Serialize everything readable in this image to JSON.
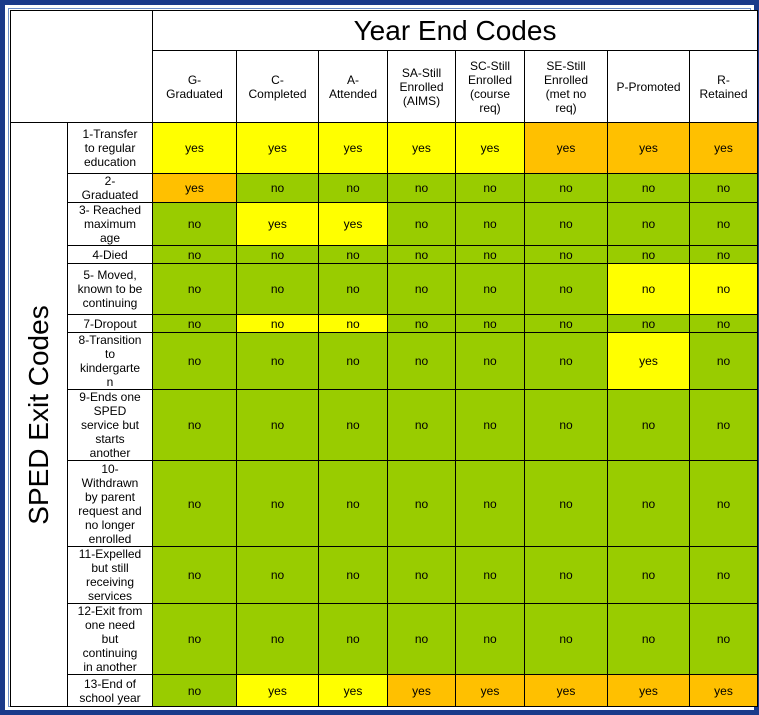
{
  "title": "Year End Codes",
  "side_label": "SPED Exit Codes",
  "columns": [
    "G-\nGraduated",
    "C-\nCompleted",
    "A-\nAttended",
    "SA-Still\nEnrolled\n(AIMS)",
    "SC-Still\nEnrolled\n(course\nreq)",
    "SE-Still\nEnrolled\n(met no\nreq)",
    "P-Promoted",
    "R-\nRetained"
  ],
  "colors": {
    "yellow": "#ffff00",
    "orange": "#ffc000",
    "green": "#99cc00"
  },
  "rows": [
    {
      "label": "1-Transfer\nto regular\neducation",
      "cells": [
        {
          "v": "yes",
          "c": "yellow"
        },
        {
          "v": "yes",
          "c": "yellow"
        },
        {
          "v": "yes",
          "c": "yellow"
        },
        {
          "v": "yes",
          "c": "yellow"
        },
        {
          "v": "yes",
          "c": "yellow"
        },
        {
          "v": "yes",
          "c": "orange"
        },
        {
          "v": "yes",
          "c": "orange"
        },
        {
          "v": "yes",
          "c": "orange"
        }
      ]
    },
    {
      "label": "2-\nGraduated",
      "cells": [
        {
          "v": "yes",
          "c": "orange"
        },
        {
          "v": "no",
          "c": "green"
        },
        {
          "v": "no",
          "c": "green"
        },
        {
          "v": "no",
          "c": "green"
        },
        {
          "v": "no",
          "c": "green"
        },
        {
          "v": "no",
          "c": "green"
        },
        {
          "v": "no",
          "c": "green"
        },
        {
          "v": "no",
          "c": "green"
        }
      ]
    },
    {
      "label": "3- Reached\nmaximum\nage",
      "cells": [
        {
          "v": "no",
          "c": "green"
        },
        {
          "v": "yes",
          "c": "yellow"
        },
        {
          "v": "yes",
          "c": "yellow"
        },
        {
          "v": "no",
          "c": "green"
        },
        {
          "v": "no",
          "c": "green"
        },
        {
          "v": "no",
          "c": "green"
        },
        {
          "v": "no",
          "c": "green"
        },
        {
          "v": "no",
          "c": "green"
        }
      ]
    },
    {
      "label": "4-Died",
      "cells": [
        {
          "v": "no",
          "c": "green"
        },
        {
          "v": "no",
          "c": "green"
        },
        {
          "v": "no",
          "c": "green"
        },
        {
          "v": "no",
          "c": "green"
        },
        {
          "v": "no",
          "c": "green"
        },
        {
          "v": "no",
          "c": "green"
        },
        {
          "v": "no",
          "c": "green"
        },
        {
          "v": "no",
          "c": "green"
        }
      ]
    },
    {
      "label": "5- Moved,\nknown to be\ncontinuing",
      "cells": [
        {
          "v": "no",
          "c": "green"
        },
        {
          "v": "no",
          "c": "green"
        },
        {
          "v": "no",
          "c": "green"
        },
        {
          "v": "no",
          "c": "green"
        },
        {
          "v": "no",
          "c": "green"
        },
        {
          "v": "no",
          "c": "green"
        },
        {
          "v": "no",
          "c": "yellow"
        },
        {
          "v": "no",
          "c": "yellow"
        }
      ]
    },
    {
      "label": "7-Dropout",
      "cells": [
        {
          "v": "no",
          "c": "green"
        },
        {
          "v": "no",
          "c": "yellow"
        },
        {
          "v": "no",
          "c": "yellow"
        },
        {
          "v": "no",
          "c": "green"
        },
        {
          "v": "no",
          "c": "green"
        },
        {
          "v": "no",
          "c": "green"
        },
        {
          "v": "no",
          "c": "green"
        },
        {
          "v": "no",
          "c": "green"
        }
      ]
    },
    {
      "label": "8-Transition\nto\nkindergarte\nn",
      "cells": [
        {
          "v": "no",
          "c": "green"
        },
        {
          "v": "no",
          "c": "green"
        },
        {
          "v": "no",
          "c": "green"
        },
        {
          "v": "no",
          "c": "green"
        },
        {
          "v": "no",
          "c": "green"
        },
        {
          "v": "no",
          "c": "green"
        },
        {
          "v": "yes",
          "c": "yellow"
        },
        {
          "v": "no",
          "c": "green"
        }
      ]
    },
    {
      "label": "9-Ends one\nSPED\nservice but\nstarts\nanother",
      "cells": [
        {
          "v": "no",
          "c": "green"
        },
        {
          "v": "no",
          "c": "green"
        },
        {
          "v": "no",
          "c": "green"
        },
        {
          "v": "no",
          "c": "green"
        },
        {
          "v": "no",
          "c": "green"
        },
        {
          "v": "no",
          "c": "green"
        },
        {
          "v": "no",
          "c": "green"
        },
        {
          "v": "no",
          "c": "green"
        }
      ]
    },
    {
      "label": "10-\nWithdrawn\nby parent\nrequest and\nno longer\nenrolled",
      "cells": [
        {
          "v": "no",
          "c": "green"
        },
        {
          "v": "no",
          "c": "green"
        },
        {
          "v": "no",
          "c": "green"
        },
        {
          "v": "no",
          "c": "green"
        },
        {
          "v": "no",
          "c": "green"
        },
        {
          "v": "no",
          "c": "green"
        },
        {
          "v": "no",
          "c": "green"
        },
        {
          "v": "no",
          "c": "green"
        }
      ]
    },
    {
      "label": "11-Expelled\nbut still\nreceiving\nservices",
      "cells": [
        {
          "v": "no",
          "c": "green"
        },
        {
          "v": "no",
          "c": "green"
        },
        {
          "v": "no",
          "c": "green"
        },
        {
          "v": "no",
          "c": "green"
        },
        {
          "v": "no",
          "c": "green"
        },
        {
          "v": "no",
          "c": "green"
        },
        {
          "v": "no",
          "c": "green"
        },
        {
          "v": "no",
          "c": "green"
        }
      ]
    },
    {
      "label": "12-Exit from\none need\nbut\ncontinuing\nin another",
      "cells": [
        {
          "v": "no",
          "c": "green"
        },
        {
          "v": "no",
          "c": "green"
        },
        {
          "v": "no",
          "c": "green"
        },
        {
          "v": "no",
          "c": "green"
        },
        {
          "v": "no",
          "c": "green"
        },
        {
          "v": "no",
          "c": "green"
        },
        {
          "v": "no",
          "c": "green"
        },
        {
          "v": "no",
          "c": "green"
        }
      ]
    },
    {
      "label": "13-End of\nschool year",
      "cells": [
        {
          "v": "no",
          "c": "green"
        },
        {
          "v": "yes",
          "c": "yellow"
        },
        {
          "v": "yes",
          "c": "yellow"
        },
        {
          "v": "yes",
          "c": "orange"
        },
        {
          "v": "yes",
          "c": "orange"
        },
        {
          "v": "yes",
          "c": "orange"
        },
        {
          "v": "yes",
          "c": "orange"
        },
        {
          "v": "yes",
          "c": "orange"
        }
      ]
    }
  ]
}
